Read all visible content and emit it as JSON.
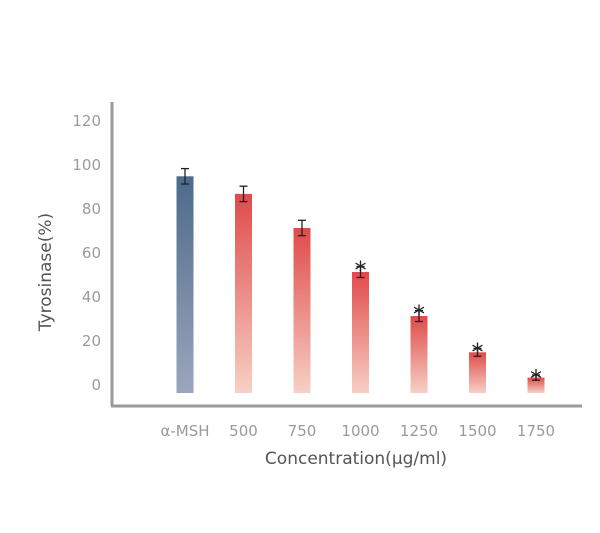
{
  "chart_data": {
    "type": "bar",
    "title": "",
    "xlabel": "Concentration(μg/ml)",
    "ylabel": "Tyrosinase(%)",
    "ylim": [
      0,
      120
    ],
    "yticks": [
      0,
      20,
      40,
      60,
      80,
      100,
      120
    ],
    "categories": [
      "α-MSH",
      "500",
      "750",
      "1000",
      "1250",
      "1500",
      "1750"
    ],
    "values": [
      98.5,
      90.5,
      75,
      55,
      35,
      18.5,
      7
    ],
    "errors": [
      3.5,
      3.5,
      3.5,
      2.5,
      2.5,
      1.8,
      1.2
    ],
    "significance": [
      "",
      "",
      "",
      "*",
      "*",
      "*",
      "*"
    ],
    "grid": false,
    "colors": {
      "control_top": "#4d6a8a",
      "control_bottom": "#9ba6bd",
      "treated_top": "#e04a4a",
      "treated_bottom": "#f7d0c5",
      "axis": "#9a9a9a"
    }
  }
}
